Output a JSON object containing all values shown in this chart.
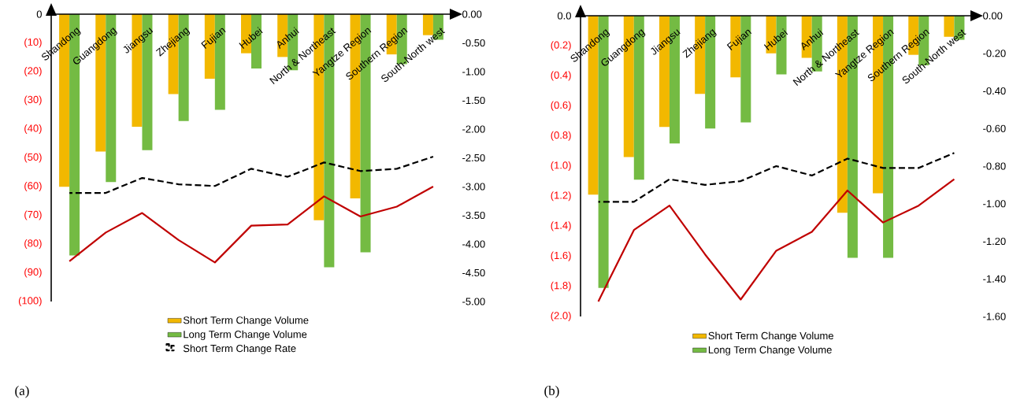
{
  "chart_data": [
    {
      "type": "bar",
      "title": "(a)",
      "legend": "bottom",
      "categories": [
        "Shandong",
        "Guangdong",
        "Jiangsu",
        "Zhejiang",
        "Fujian",
        "Hubei",
        "Anhui",
        "North & Northeast",
        "Yangtze Region",
        "Southern Region",
        "South-North west"
      ],
      "ylim": [
        -100,
        0
      ],
      "yticks": [
        {
          "value": -100,
          "label": "(100)"
        },
        {
          "value": -90,
          "label": "(90)"
        },
        {
          "value": -80,
          "label": "(80)"
        },
        {
          "value": -70,
          "label": "(70)"
        },
        {
          "value": -60,
          "label": "(60)"
        },
        {
          "value": -50,
          "label": "(50)"
        },
        {
          "value": -40,
          "label": "(40)"
        },
        {
          "value": -30,
          "label": "(30)"
        },
        {
          "value": -20,
          "label": "(20)"
        },
        {
          "value": -10,
          "label": "(10)"
        },
        0
      ],
      "y2lim": [
        -5,
        0
      ],
      "y2ticks": [
        {
          "value": -5,
          "label": "-5.00"
        },
        {
          "value": -4.5,
          "label": "-4.50"
        },
        {
          "value": -4,
          "label": "-4.00"
        },
        {
          "value": -3.5,
          "label": "-3.50"
        },
        {
          "value": -3,
          "label": "-3.00"
        },
        {
          "value": -2.5,
          "label": "-2.50"
        },
        {
          "value": -2,
          "label": "-2.00"
        },
        {
          "value": -1.5,
          "label": "-1.50"
        },
        {
          "value": -1,
          "label": "-1.00"
        },
        {
          "value": -0.5,
          "label": "-0.50"
        },
        {
          "value": 0,
          "label": "0.00"
        }
      ],
      "series": [
        {
          "name": "Short Term Change Volume",
          "type": "bar",
          "color": "#f2b800",
          "values": [
            -60.1,
            -47.8,
            -39.2,
            -27.8,
            -22.5,
            -13.6,
            -14.9,
            -71.7,
            -64.1,
            -14.0,
            -7.3
          ]
        },
        {
          "name": "Long Term Change Volume",
          "type": "bar",
          "color": "#74bb43",
          "values": [
            -84.0,
            -58.4,
            -47.3,
            -37.2,
            -33.3,
            -18.9,
            -19.5,
            -88.1,
            -82.9,
            -17.4,
            -8.9
          ]
        },
        {
          "name": "Short Term Change Rate",
          "type": "line",
          "axis": "y2",
          "line_style": "dashed",
          "color": "#000000",
          "values": [
            -3.11,
            -3.11,
            -2.85,
            -2.96,
            -2.99,
            -2.69,
            -2.83,
            -2.58,
            -2.73,
            -2.69,
            -2.48
          ]
        },
        {
          "type": "line",
          "axis": "y2",
          "line_style": "solid",
          "color": "#c00000",
          "values": [
            -4.3,
            -3.8,
            -3.46,
            -3.93,
            -4.32,
            -3.68,
            -3.66,
            -3.17,
            -3.52,
            -3.35,
            -3.0
          ]
        }
      ]
    },
    {
      "type": "bar",
      "title": "(b)",
      "legend": "bottom",
      "categories": [
        "Shandong",
        "Guangdong",
        "Jiangsu",
        "Zhejiang",
        "Fujian",
        "Hubei",
        "Anhui",
        "North & Northeast",
        "Yangtze Region",
        "Southern Region",
        "South-North west"
      ],
      "ylim": [
        -2,
        0
      ],
      "yticks": [
        {
          "value": -2,
          "label": "(2.0)"
        },
        {
          "value": -1.8,
          "label": "(1.8)"
        },
        {
          "value": -1.6,
          "label": "(1.6)"
        },
        {
          "value": -1.4,
          "label": "(1.4)"
        },
        {
          "value": -1.2,
          "label": "(1.2)"
        },
        {
          "value": -1,
          "label": "(1.0)"
        },
        {
          "value": -0.8,
          "label": "(0.8)"
        },
        {
          "value": -0.6,
          "label": "(0.6)"
        },
        {
          "value": -0.4,
          "label": "(0.4)"
        },
        {
          "value": -0.2,
          "label": "(0.2)"
        },
        {
          "value": 0,
          "label": "0.0"
        }
      ],
      "y2lim": [
        -1.6,
        0
      ],
      "y2ticks": [
        {
          "value": -1.6,
          "label": "-1.60"
        },
        {
          "value": -1.4,
          "label": "-1.40"
        },
        {
          "value": -1.2,
          "label": "-1.20"
        },
        {
          "value": -1,
          "label": "-1.00"
        },
        {
          "value": -0.8,
          "label": "-0.80"
        },
        {
          "value": -0.6,
          "label": "-0.60"
        },
        {
          "value": -0.4,
          "label": "-0.40"
        },
        {
          "value": -0.2,
          "label": "-0.20"
        },
        {
          "value": 0,
          "label": "0.00"
        }
      ],
      "series": [
        {
          "name": "Short Term Change Volume",
          "type": "bar",
          "color": "#f2b800",
          "values": [
            -1.19,
            -0.94,
            -0.74,
            -0.52,
            -0.41,
            -0.25,
            -0.28,
            -1.31,
            -1.18,
            -0.26,
            -0.14
          ]
        },
        {
          "name": "Long Term Change Volume",
          "type": "bar",
          "color": "#74bb43",
          "values": [
            -1.81,
            -1.09,
            -0.85,
            -0.75,
            -0.71,
            -0.39,
            -0.37,
            -1.61,
            -1.61,
            -0.33,
            -0.16
          ]
        },
        {
          "type": "line",
          "axis": "y2",
          "line_style": "dashed",
          "color": "#000000",
          "values": [
            -0.99,
            -0.99,
            -0.87,
            -0.9,
            -0.88,
            -0.8,
            -0.85,
            -0.76,
            -0.81,
            -0.81,
            -0.73
          ]
        },
        {
          "type": "line",
          "axis": "y2",
          "line_style": "solid",
          "color": "#c00000",
          "values": [
            -1.52,
            -1.14,
            -1.01,
            -1.27,
            -1.51,
            -1.25,
            -1.15,
            -0.93,
            -1.1,
            -1.01,
            -0.87
          ]
        }
      ]
    }
  ]
}
